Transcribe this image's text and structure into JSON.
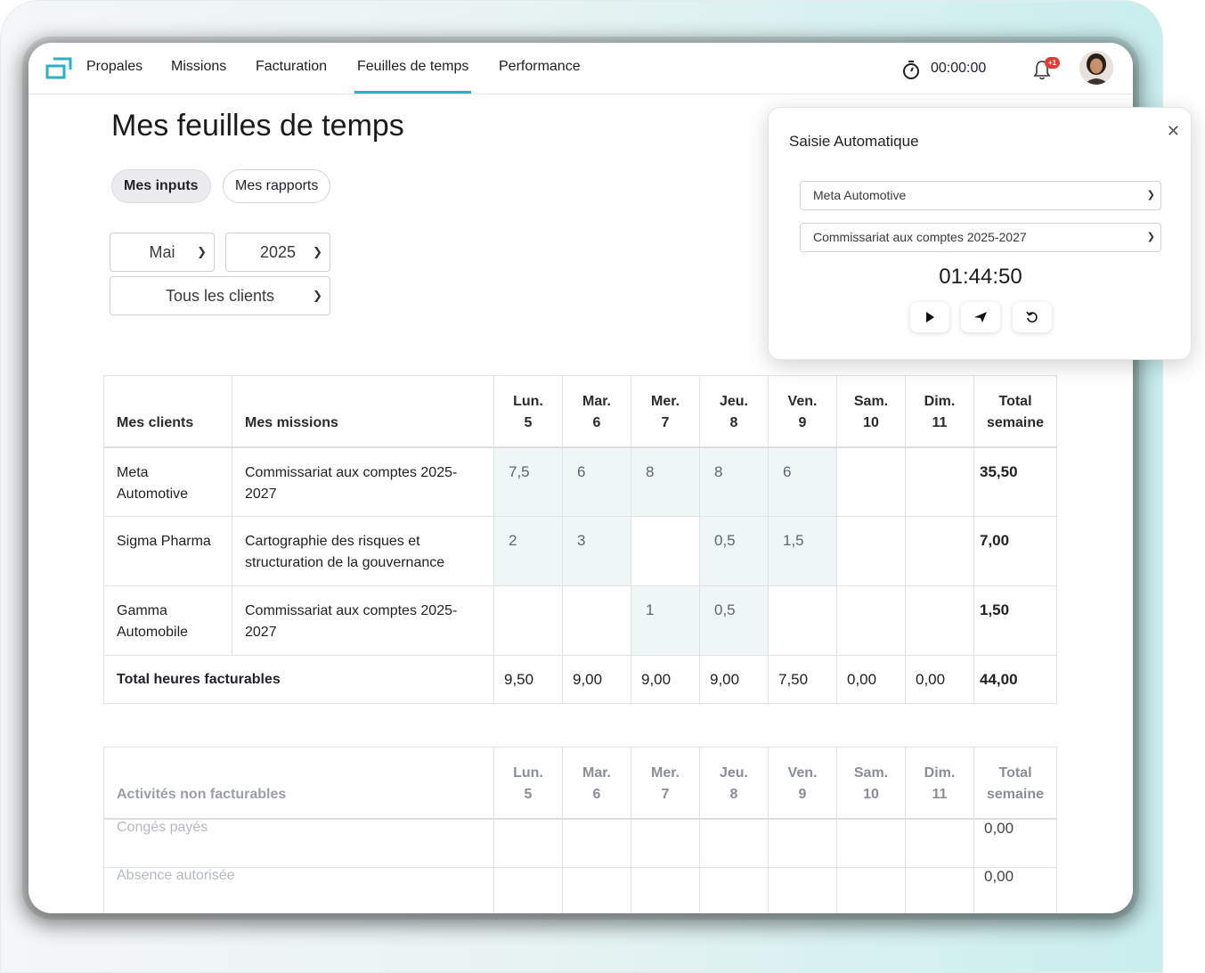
{
  "nav": {
    "items": [
      "Propales",
      "Missions",
      "Facturation",
      "Feuilles de temps",
      "Performance"
    ],
    "active": "Feuilles de temps",
    "timer": "00:00:00",
    "notif_badge": "+1"
  },
  "page": {
    "title": "Mes feuilles de temps",
    "tabs": [
      "Mes inputs",
      "Mes rapports"
    ],
    "filters": {
      "month": "Mai",
      "year": "2025",
      "client": "Tous les clients"
    }
  },
  "billable": {
    "headers": {
      "clients": "Mes clients",
      "missions": "Mes missions",
      "days": [
        [
          "Lun.",
          "5"
        ],
        [
          "Mar.",
          "6"
        ],
        [
          "Mer.",
          "7"
        ],
        [
          "Jeu.",
          "8"
        ],
        [
          "Ven.",
          "9"
        ],
        [
          "Sam.",
          "10"
        ],
        [
          "Dim.",
          "11"
        ]
      ],
      "total": [
        "Total",
        "semaine"
      ]
    },
    "rows": [
      {
        "client": "Meta Automotive",
        "mission": "Commissariat aux comptes 2025-2027",
        "hours": [
          "7,5",
          "6",
          "8",
          "8",
          "6",
          "",
          ""
        ],
        "filled": [
          true,
          true,
          true,
          true,
          true,
          false,
          false
        ],
        "total": "35,50"
      },
      {
        "client": "Sigma Pharma",
        "mission": "Cartographie des risques et structuration de la gouvernance",
        "hours": [
          "2",
          "3",
          "",
          "0,5",
          "1,5",
          "",
          ""
        ],
        "filled": [
          true,
          true,
          false,
          true,
          true,
          false,
          false
        ],
        "total": "7,00"
      },
      {
        "client": "Gamma Automobile",
        "mission": "Commissariat aux comptes 2025-2027",
        "hours": [
          "",
          "",
          "1",
          "0,5",
          "",
          "",
          ""
        ],
        "filled": [
          false,
          false,
          true,
          true,
          false,
          false,
          false
        ],
        "total": "1,50"
      }
    ],
    "totals": {
      "label": "Total heures facturables",
      "days": [
        "9,50",
        "9,00",
        "9,00",
        "9,00",
        "7,50",
        "0,00",
        "0,00"
      ],
      "week": "44,00"
    }
  },
  "nonbillable": {
    "header": "Activités non facturables",
    "rows": [
      {
        "label": "Congés payés",
        "total": "0,00"
      },
      {
        "label": "Absence autorisée",
        "total": "0,00"
      }
    ]
  },
  "popup": {
    "title": "Saisie Automatique",
    "client": "Meta Automotive",
    "mission": "Commissariat aux comptes 2025-2027",
    "time": "01:44:50",
    "controls": [
      "play-icon",
      "send-icon",
      "reset-icon"
    ]
  }
}
